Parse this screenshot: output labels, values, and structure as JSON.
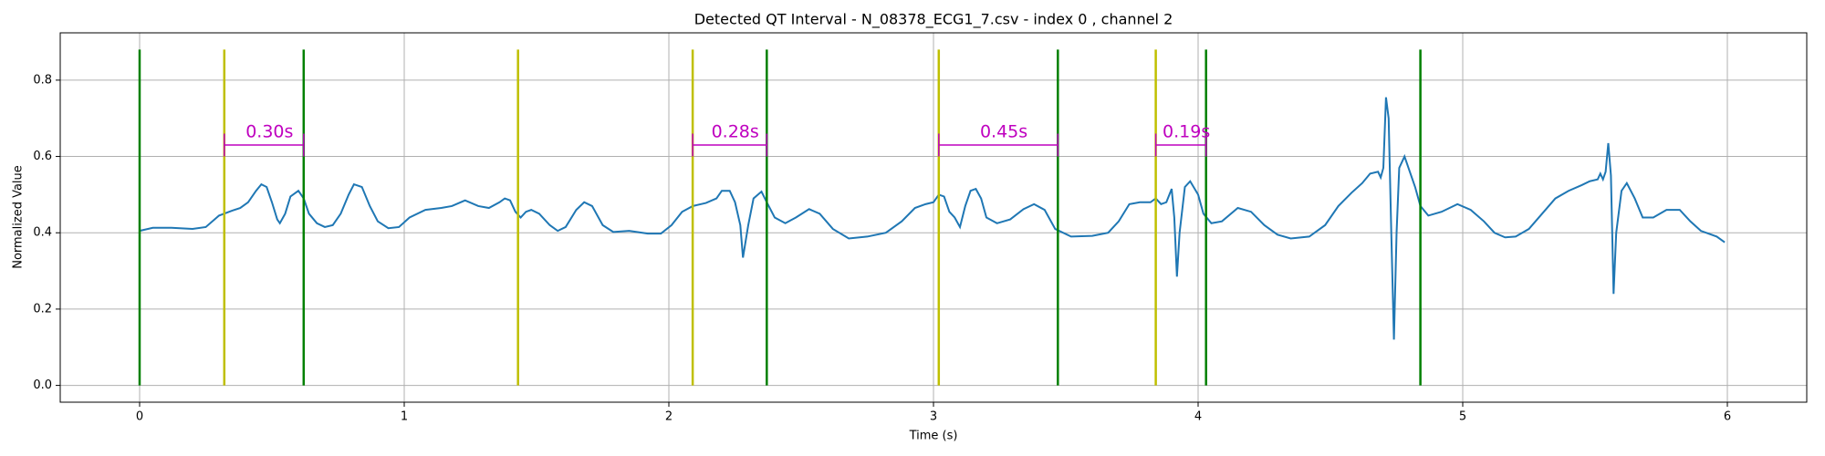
{
  "chart_data": {
    "type": "line",
    "title": "Detected QT Interval - N_08378_ECG1_7.csv - index 0 , channel 2",
    "x_label": "Time (s)",
    "y_label": "Normalized Value",
    "xlim": [
      -0.3,
      6.3
    ],
    "ylim": [
      -0.044,
      0.924
    ],
    "xticks": [
      0,
      1,
      2,
      3,
      4,
      5,
      6
    ],
    "yticks": [
      {
        "value": 0,
        "label": "0.0"
      },
      0.2,
      0.4,
      0.6,
      0.8
    ],
    "grid": true,
    "signal": {
      "color": "#1f77b4",
      "x": [
        0,
        0.05,
        0.12,
        0.2,
        0.25,
        0.3,
        0.35,
        0.38,
        0.41,
        0.44,
        0.46,
        0.48,
        0.5,
        0.52,
        0.53,
        0.55,
        0.57,
        0.6,
        0.62,
        0.64,
        0.67,
        0.7,
        0.73,
        0.76,
        0.79,
        0.81,
        0.84,
        0.87,
        0.9,
        0.94,
        0.98,
        1.02,
        1.08,
        1.14,
        1.18,
        1.23,
        1.28,
        1.32,
        1.36,
        1.38,
        1.4,
        1.42,
        1.44,
        1.46,
        1.48,
        1.51,
        1.55,
        1.58,
        1.61,
        1.65,
        1.68,
        1.71,
        1.75,
        1.79,
        1.85,
        1.92,
        1.97,
        2.01,
        2.05,
        2.09,
        2.14,
        2.18,
        2.2,
        2.23,
        2.25,
        2.27,
        2.28,
        2.3,
        2.32,
        2.35,
        2.37,
        2.4,
        2.44,
        2.48,
        2.53,
        2.57,
        2.62,
        2.68,
        2.75,
        2.82,
        2.88,
        2.93,
        2.97,
        3.0,
        3.02,
        3.04,
        3.06,
        3.08,
        3.1,
        3.12,
        3.14,
        3.16,
        3.18,
        3.2,
        3.24,
        3.29,
        3.34,
        3.38,
        3.42,
        3.46,
        3.52,
        3.6,
        3.66,
        3.7,
        3.74,
        3.78,
        3.82,
        3.84,
        3.86,
        3.88,
        3.9,
        3.91,
        3.92,
        3.93,
        3.95,
        3.97,
        4.0,
        4.02,
        4.05,
        4.09,
        4.15,
        4.2,
        4.25,
        4.3,
        4.35,
        4.42,
        4.48,
        4.53,
        4.58,
        4.62,
        4.65,
        4.68,
        4.69,
        4.7,
        4.71,
        4.72,
        4.73,
        4.74,
        4.75,
        4.76,
        4.78,
        4.8,
        4.82,
        4.84,
        4.87,
        4.92,
        4.98,
        5.03,
        5.08,
        5.12,
        5.16,
        5.2,
        5.25,
        5.3,
        5.35,
        5.4,
        5.45,
        5.48,
        5.51,
        5.52,
        5.53,
        5.54,
        5.55,
        5.56,
        5.57,
        5.58,
        5.6,
        5.62,
        5.65,
        5.68,
        5.72,
        5.77,
        5.82,
        5.86,
        5.9,
        5.96,
        5.99
      ],
      "values": [
        0.405,
        0.413,
        0.413,
        0.41,
        0.415,
        0.445,
        0.458,
        0.465,
        0.48,
        0.51,
        0.527,
        0.52,
        0.48,
        0.435,
        0.425,
        0.45,
        0.495,
        0.51,
        0.49,
        0.45,
        0.425,
        0.415,
        0.42,
        0.45,
        0.5,
        0.527,
        0.52,
        0.47,
        0.43,
        0.412,
        0.415,
        0.44,
        0.46,
        0.465,
        0.47,
        0.485,
        0.47,
        0.465,
        0.48,
        0.49,
        0.485,
        0.455,
        0.44,
        0.455,
        0.46,
        0.45,
        0.42,
        0.405,
        0.415,
        0.46,
        0.48,
        0.47,
        0.42,
        0.402,
        0.405,
        0.398,
        0.398,
        0.42,
        0.455,
        0.47,
        0.478,
        0.49,
        0.51,
        0.51,
        0.48,
        0.42,
        0.335,
        0.42,
        0.49,
        0.508,
        0.48,
        0.44,
        0.425,
        0.44,
        0.462,
        0.45,
        0.41,
        0.385,
        0.39,
        0.4,
        0.43,
        0.465,
        0.475,
        0.48,
        0.5,
        0.495,
        0.455,
        0.44,
        0.415,
        0.47,
        0.51,
        0.515,
        0.49,
        0.44,
        0.425,
        0.435,
        0.462,
        0.475,
        0.46,
        0.41,
        0.39,
        0.392,
        0.4,
        0.43,
        0.475,
        0.48,
        0.48,
        0.49,
        0.475,
        0.48,
        0.515,
        0.44,
        0.285,
        0.4,
        0.52,
        0.535,
        0.5,
        0.45,
        0.425,
        0.43,
        0.465,
        0.455,
        0.42,
        0.395,
        0.385,
        0.39,
        0.42,
        0.47,
        0.505,
        0.53,
        0.555,
        0.56,
        0.545,
        0.57,
        0.755,
        0.7,
        0.4,
        0.12,
        0.4,
        0.57,
        0.6,
        0.56,
        0.52,
        0.47,
        0.445,
        0.455,
        0.475,
        0.46,
        0.43,
        0.4,
        0.388,
        0.39,
        0.41,
        0.45,
        0.49,
        0.51,
        0.525,
        0.535,
        0.54,
        0.555,
        0.54,
        0.56,
        0.635,
        0.55,
        0.24,
        0.4,
        0.51,
        0.53,
        0.49,
        0.44,
        0.44,
        0.46,
        0.46,
        0.43,
        0.405,
        0.39,
        0.375
      ]
    },
    "vline_range": [
      0,
      0.88
    ],
    "vlines": [
      {
        "color": "#008000",
        "x": [
          0,
          0.62,
          2.37,
          3.47,
          4.03,
          4.84
        ]
      },
      {
        "color": "#bfbf00",
        "x": [
          0.32,
          1.43,
          2.09,
          3.02,
          3.84
        ]
      }
    ],
    "interval_color": "#bf00bf",
    "interval_y": 0.63,
    "interval_cap": [
      0.6,
      0.66
    ],
    "intervals": [
      {
        "start": 0.32,
        "end": 0.62,
        "label": "0.30s"
      },
      {
        "start": 2.09,
        "end": 2.37,
        "label": "0.28s"
      },
      {
        "start": 3.02,
        "end": 3.47,
        "label": "0.45s"
      },
      {
        "start": 3.84,
        "end": 4.03,
        "label": "0.19s"
      }
    ]
  }
}
